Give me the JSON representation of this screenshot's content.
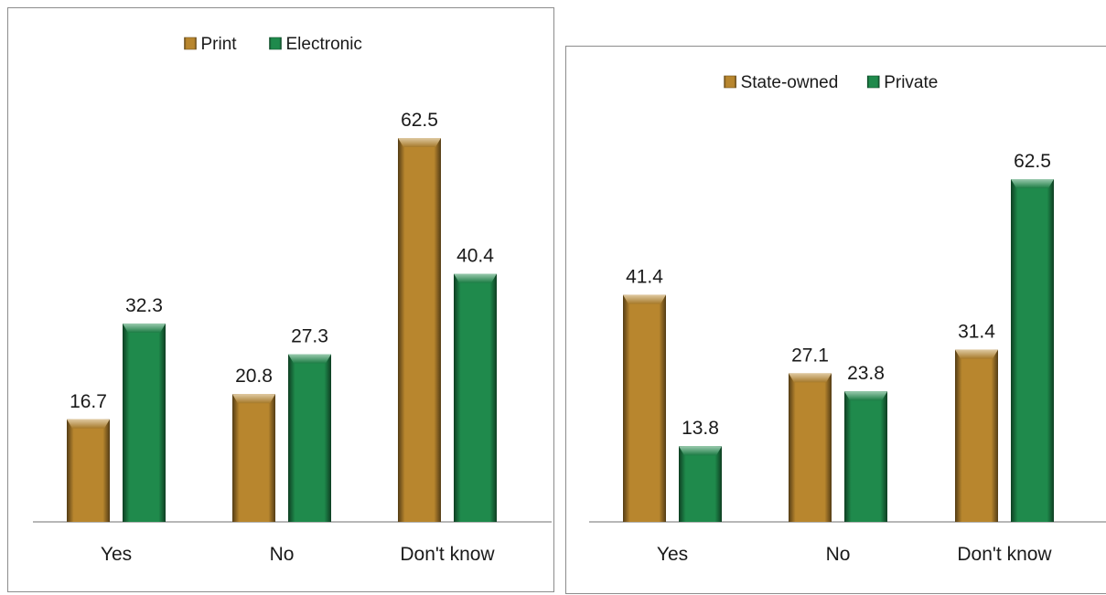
{
  "chart_data": [
    {
      "type": "bar",
      "categories": [
        "Yes",
        "No",
        "Don't know"
      ],
      "series": [
        {
          "name": "Print",
          "values": [
            16.7,
            20.8,
            62.5
          ],
          "color": "#b8862e"
        },
        {
          "name": "Electronic",
          "values": [
            32.3,
            27.3,
            40.4
          ],
          "color": "#1f8a4c"
        }
      ],
      "ylim": [
        0,
        70
      ],
      "legend": "top-center",
      "grid": false
    },
    {
      "type": "bar",
      "categories": [
        "Yes",
        "No",
        "Don't know"
      ],
      "series": [
        {
          "name": "State-owned",
          "values": [
            41.4,
            27.1,
            31.4
          ],
          "color": "#b8862e"
        },
        {
          "name": "Private",
          "values": [
            13.8,
            23.8,
            62.5
          ],
          "color": "#1f8a4c"
        }
      ],
      "ylim": [
        0,
        70
      ],
      "legend": "top-center",
      "grid": false
    }
  ]
}
